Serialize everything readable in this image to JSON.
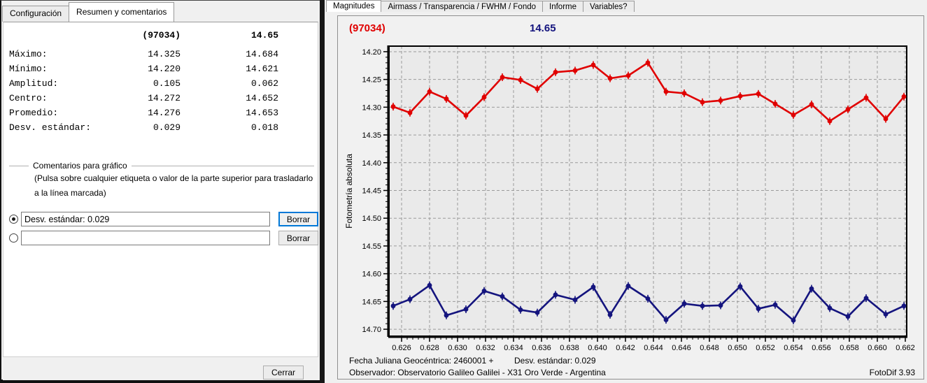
{
  "left_window": {
    "tabs": [
      {
        "label": "Configuración"
      },
      {
        "label": "Resumen y comentarios"
      }
    ],
    "summary": {
      "col1_header": "(97034)",
      "col2_header": "14.65",
      "rows": [
        {
          "label": "Máximo:",
          "v1": "14.325",
          "v2": "14.684"
        },
        {
          "label": "Mínimo:",
          "v1": "14.220",
          "v2": "14.621"
        },
        {
          "label": "Amplitud:",
          "v1": "0.105",
          "v2": "0.062"
        },
        {
          "label": "Centro:",
          "v1": "14.272",
          "v2": "14.652"
        },
        {
          "label": "Promedio:",
          "v1": "14.276",
          "v2": "14.653"
        },
        {
          "label": "Desv. estándar:",
          "v1": "0.029",
          "v2": "0.018"
        }
      ]
    },
    "comments_group": {
      "legend": "Comentarios para gráfico",
      "hint_line1": "(Pulsa sobre cualquier etiqueta o valor de la parte superior para trasladarlo",
      "hint_line2": "a la línea marcada)",
      "comment1_value": "Desv. estándar: 0.029",
      "comment2_value": "",
      "clear_button_label": "Borrar"
    },
    "close_button_label": "Cerrar"
  },
  "right_window": {
    "tabs": [
      {
        "label": "Magnitudes"
      },
      {
        "label": "Airmass / Transparencia / FWHM / Fondo"
      },
      {
        "label": "Informe"
      },
      {
        "label": "Variables?"
      }
    ],
    "chart_header": {
      "target_label": "(97034)",
      "target_color": "#e00000",
      "comparison_label": "14.65",
      "comparison_color": "#14147e"
    },
    "footer": {
      "julian_date_label": "Fecha Juliana Geocéntrica: 2460001 +",
      "stddev_label": "Desv. estándar: 0.029",
      "observer_label": "Observador: Observatorio Galileo Galilei - X31 Oro Verde - Argentina",
      "app_version": "FotoDif 3.93"
    }
  },
  "chart_data": {
    "type": "line",
    "title": "",
    "ylabel": "Fotometría absoluta",
    "xlabel": "Fecha Juliana Geocéntrica: 2460001 +",
    "y_inverted": true,
    "grid": "dashed",
    "xlim": [
      0.6251,
      0.6621
    ],
    "ylim": [
      14.19,
      14.7125
    ],
    "x_ticks": [
      0.626,
      0.628,
      0.63,
      0.632,
      0.634,
      0.636,
      0.638,
      0.64,
      0.642,
      0.644,
      0.646,
      0.648,
      0.65,
      0.652,
      0.654,
      0.656,
      0.658,
      0.66,
      0.662
    ],
    "y_ticks": [
      14.2,
      14.25,
      14.3,
      14.35,
      14.4,
      14.45,
      14.5,
      14.55,
      14.6,
      14.65,
      14.7
    ],
    "x": [
      0.6254,
      0.6266,
      0.628,
      0.6292,
      0.6306,
      0.6319,
      0.6332,
      0.6345,
      0.6357,
      0.637,
      0.6384,
      0.6397,
      0.6409,
      0.6422,
      0.6436,
      0.6449,
      0.6462,
      0.6475,
      0.6488,
      0.6502,
      0.6515,
      0.6527,
      0.654,
      0.6553,
      0.6566,
      0.6579,
      0.6592,
      0.6606,
      0.6619
    ],
    "series": [
      {
        "name": "(97034)",
        "color": "#e00000",
        "values": [
          14.299,
          14.31,
          14.272,
          14.285,
          14.315,
          14.282,
          14.246,
          14.251,
          14.267,
          14.237,
          14.234,
          14.224,
          14.248,
          14.243,
          14.22,
          14.272,
          14.275,
          14.291,
          14.288,
          14.28,
          14.276,
          14.294,
          14.314,
          14.295,
          14.325,
          14.304,
          14.283,
          14.321,
          14.281
        ]
      },
      {
        "name": "14.65",
        "color": "#14147e",
        "values": [
          14.658,
          14.646,
          14.621,
          14.675,
          14.664,
          14.631,
          14.641,
          14.665,
          14.67,
          14.638,
          14.647,
          14.624,
          14.674,
          14.622,
          14.645,
          14.683,
          14.654,
          14.658,
          14.657,
          14.623,
          14.663,
          14.656,
          14.684,
          14.627,
          14.662,
          14.677,
          14.644,
          14.673,
          14.658
        ]
      }
    ]
  }
}
